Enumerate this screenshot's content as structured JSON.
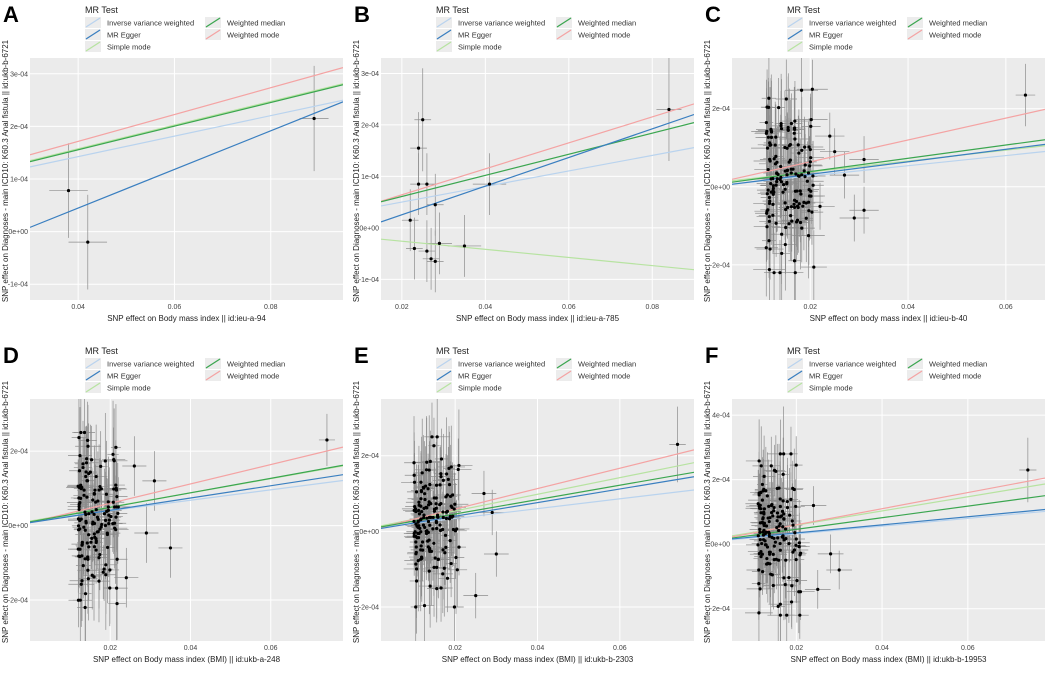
{
  "legend": {
    "title": "MR Test",
    "items": [
      {
        "key": "ivw",
        "label": "Inverse variance weighted",
        "color": "#b9d3ee"
      },
      {
        "key": "egger",
        "label": "MR Egger",
        "color": "#3a7fc0"
      },
      {
        "key": "simple",
        "label": "Simple mode",
        "color": "#b7e3a1"
      },
      {
        "key": "median",
        "label": "Weighted median",
        "color": "#3ba650"
      },
      {
        "key": "wmode",
        "label": "Weighted mode",
        "color": "#f4a3a3"
      }
    ]
  },
  "chart_data": [
    {
      "panel": "A",
      "type": "scatter",
      "xlabel": "SNP effect on Body mass index || id:ieu-a-94",
      "ylabel": "SNP effect on Diagnoses - main ICD10: K60.3 Anal fistula || id:ukb-b-6721",
      "xlim": [
        0.03,
        0.095
      ],
      "ylim": [
        -0.00013,
        0.00033
      ],
      "xticks": [
        0.04,
        0.06,
        0.08
      ],
      "xtick_labels": [
        "0.04",
        "0.06",
        "0.08"
      ],
      "yticks": [
        -0.0001,
        0,
        0.0001,
        0.0002,
        0.0003
      ],
      "ytick_labels": [
        "-1e-04",
        "0e+00",
        "1e-04",
        "2e-04",
        "3e-04"
      ],
      "points": [
        {
          "x": 0.038,
          "y": 7.8e-05,
          "xerr": 0.004,
          "yerr": 9e-05
        },
        {
          "x": 0.042,
          "y": -2e-05,
          "xerr": 0.004,
          "yerr": 9e-05
        },
        {
          "x": 0.089,
          "y": 0.000215,
          "xerr": 0.003,
          "yerr": 0.0001
        }
      ],
      "lines": {
        "ivw": [
          6.45e-05,
          0.00195
        ],
        "egger": [
          -0.000102,
          0.00367
        ],
        "simple": [
          6.75e-05,
          0.00225
        ],
        "median": [
          6.55e-05,
          0.00225
        ],
        "wmode": [
          6.95e-05,
          0.00255
        ]
      }
    },
    {
      "panel": "B",
      "type": "scatter",
      "xlabel": "SNP effect on Body mass index || id:ieu-a-785",
      "ylabel": "SNP effect on Diagnoses - main ICD10: K60.3 Anal fistula || id:ukb-b-6721",
      "xlim": [
        0.015,
        0.09
      ],
      "ylim": [
        -0.00014,
        0.00033
      ],
      "xticks": [
        0.02,
        0.04,
        0.06,
        0.08
      ],
      "xtick_labels": [
        "0.02",
        "0.04",
        "0.06",
        "0.08"
      ],
      "yticks": [
        -0.0001,
        0,
        0.0001,
        0.0002,
        0.0003
      ],
      "ytick_labels": [
        "-1e-04",
        "0e+00",
        "1e-04",
        "2e-04",
        "3e-04"
      ],
      "points": [
        {
          "x": 0.022,
          "y": 1.5e-05,
          "xerr": 0.002,
          "yerr": 6e-05
        },
        {
          "x": 0.023,
          "y": -4e-05,
          "xerr": 0.002,
          "yerr": 6e-05
        },
        {
          "x": 0.024,
          "y": 0.000155,
          "xerr": 0.002,
          "yerr": 7e-05
        },
        {
          "x": 0.025,
          "y": 0.00021,
          "xerr": 0.002,
          "yerr": 0.0001
        },
        {
          "x": 0.024,
          "y": 8.5e-05,
          "xerr": 0.002,
          "yerr": 6e-05
        },
        {
          "x": 0.026,
          "y": 8.5e-05,
          "xerr": 0.002,
          "yerr": 6e-05
        },
        {
          "x": 0.026,
          "y": -4.5e-05,
          "xerr": 0.002,
          "yerr": 6e-05
        },
        {
          "x": 0.027,
          "y": -6e-05,
          "xerr": 0.002,
          "yerr": 6e-05
        },
        {
          "x": 0.028,
          "y": 4.5e-05,
          "xerr": 0.002,
          "yerr": 6e-05
        },
        {
          "x": 0.028,
          "y": -6.5e-05,
          "xerr": 0.002,
          "yerr": 6e-05
        },
        {
          "x": 0.029,
          "y": -3e-05,
          "xerr": 0.003,
          "yerr": 6e-05
        },
        {
          "x": 0.035,
          "y": -3.5e-05,
          "xerr": 0.004,
          "yerr": 6e-05
        },
        {
          "x": 0.041,
          "y": 8.5e-05,
          "xerr": 0.004,
          "yerr": 6e-05
        },
        {
          "x": 0.084,
          "y": 0.00023,
          "xerr": 0.003,
          "yerr": 0.0001
        }
      ],
      "lines": {
        "ivw": [
          2e-05,
          0.00151
        ],
        "egger": [
          -3e-05,
          0.00278
        ],
        "simple": [
          -1e-05,
          -0.00079
        ],
        "median": [
          2e-05,
          0.00205
        ],
        "wmode": [
          1.4e-05,
          0.00252
        ]
      }
    },
    {
      "panel": "C",
      "type": "scatter",
      "xlabel": "SNP effect on body mass index || id:ieu-b-40",
      "ylabel": "SNP effect on Diagnoses - main ICD10: K60.3 Anal fistula || id:ukb-b-6721",
      "xlim": [
        0.004,
        0.068
      ],
      "ylim": [
        -0.00029,
        0.00033
      ],
      "xticks": [
        0.02,
        0.04,
        0.06
      ],
      "xtick_labels": [
        "0.02",
        "0.04",
        "0.06"
      ],
      "yticks": [
        -0.0002,
        0,
        0.0002
      ],
      "ytick_labels": [
        "-2e-04",
        "0e+00",
        "2e-04"
      ],
      "points": [
        {
          "x": 0.064,
          "y": 0.000235,
          "xerr": 0.002,
          "yerr": 8e-05
        },
        {
          "x": 0.031,
          "y": 7e-05,
          "xerr": 0.003,
          "yerr": 6e-05
        },
        {
          "x": 0.031,
          "y": -6e-05,
          "xerr": 0.003,
          "yerr": 6e-05
        },
        {
          "x": 0.029,
          "y": -8e-05,
          "xerr": 0.003,
          "yerr": 6e-05
        },
        {
          "x": 0.024,
          "y": 0.00013,
          "xerr": 0.003,
          "yerr": 6e-05
        },
        {
          "x": 0.025,
          "y": 9e-05,
          "xerr": 0.003,
          "yerr": 6e-05
        },
        {
          "x": 0.022,
          "y": -5e-05,
          "xerr": 0.003,
          "yerr": 6e-05
        },
        {
          "x": 0.027,
          "y": 3e-05,
          "xerr": 0.003,
          "yerr": 6e-05
        }
      ],
      "cloud": {
        "n": 160,
        "x_range": [
          0.011,
          0.021
        ],
        "y_range": [
          -0.00022,
          0.00025
        ],
        "seed": 17
      },
      "lines": {
        "ivw": [
          2e-06,
          0.0013
        ],
        "egger": [
          0.0,
          0.0016
        ],
        "simple": [
          1e-05,
          0.0014
        ],
        "median": [
          5e-06,
          0.0017
        ],
        "wmode": [
          8e-06,
          0.0028
        ]
      }
    },
    {
      "panel": "D",
      "type": "scatter",
      "xlabel": "SNP effect on Body mass index (BMI) || id:ukb-a-248",
      "ylabel": "SNP effect on Diagnoses - main ICD10: K60.3 Anal fistula || id:ukb-b-6721",
      "xlim": [
        0.0,
        0.078
      ],
      "ylim": [
        -0.00031,
        0.00034
      ],
      "xticks": [
        0.02,
        0.04,
        0.06
      ],
      "xtick_labels": [
        "0.02",
        "0.04",
        "0.06"
      ],
      "yticks": [
        -0.0002,
        0,
        0.0002
      ],
      "ytick_labels": [
        "-2e-04",
        "0e+00",
        "2e-04"
      ],
      "points": [
        {
          "x": 0.074,
          "y": 0.00023,
          "xerr": 0.002,
          "yerr": 7e-05
        },
        {
          "x": 0.031,
          "y": 0.00012,
          "xerr": 0.003,
          "yerr": 8e-05
        },
        {
          "x": 0.035,
          "y": -6e-05,
          "xerr": 0.003,
          "yerr": 8e-05
        },
        {
          "x": 0.029,
          "y": -2e-05,
          "xerr": 0.003,
          "yerr": 8e-05
        },
        {
          "x": 0.026,
          "y": 0.00016,
          "xerr": 0.003,
          "yerr": 8e-05
        },
        {
          "x": 0.024,
          "y": -0.00014,
          "xerr": 0.003,
          "yerr": 8e-05
        },
        {
          "x": 0.022,
          "y": 5e-05,
          "xerr": 0.003,
          "yerr": 8e-05
        }
      ],
      "cloud": {
        "n": 150,
        "x_range": [
          0.012,
          0.022
        ],
        "y_range": [
          -0.00022,
          0.00025
        ],
        "seed": 29
      },
      "lines": {
        "ivw": [
          1.2e-05,
          0.0014
        ],
        "egger": [
          8e-06,
          0.00165
        ],
        "simple": [
          1.2e-05,
          0.0019
        ],
        "median": [
          1e-05,
          0.00195
        ],
        "wmode": [
          8e-06,
          0.0026
        ]
      }
    },
    {
      "panel": "E",
      "type": "scatter",
      "xlabel": "SNP effect on Body mass index (BMI) || id:ukb-b-2303",
      "ylabel": "SNP effect on Diagnoses - main ICD10: K60.3 Anal fistula || id:ukb-b-6721",
      "xlim": [
        0.002,
        0.078
      ],
      "ylim": [
        -0.00029,
        0.00035
      ],
      "xticks": [
        0.02,
        0.04,
        0.06
      ],
      "xtick_labels": [
        "0.02",
        "0.04",
        "0.06"
      ],
      "yticks": [
        -0.0002,
        0,
        0.0002
      ],
      "ytick_labels": [
        "-2e-04",
        "0e+00",
        "2e-04"
      ],
      "points": [
        {
          "x": 0.074,
          "y": 0.00023,
          "xerr": 0.002,
          "yerr": 0.0001
        },
        {
          "x": 0.029,
          "y": 5e-05,
          "xerr": 0.003,
          "yerr": 6e-05
        },
        {
          "x": 0.03,
          "y": -6e-05,
          "xerr": 0.003,
          "yerr": 6e-05
        },
        {
          "x": 0.025,
          "y": -0.00017,
          "xerr": 0.003,
          "yerr": 6e-05
        },
        {
          "x": 0.027,
          "y": 0.0001,
          "xerr": 0.003,
          "yerr": 6e-05
        }
      ],
      "cloud": {
        "n": 170,
        "x_range": [
          0.01,
          0.021
        ],
        "y_range": [
          -0.0002,
          0.00025
        ],
        "seed": 41
      },
      "lines": {
        "ivw": [
          8e-06,
          0.0013
        ],
        "egger": [
          4e-06,
          0.0018
        ],
        "simple": [
          1e-05,
          0.0022
        ],
        "median": [
          8e-06,
          0.0019
        ],
        "wmode": [
          5e-06,
          0.0027
        ]
      }
    },
    {
      "panel": "F",
      "type": "scatter",
      "xlabel": "SNP effect on Body mass index (BMI) || id:ukb-b-19953",
      "ylabel": "SNP effect on Diagnoses - main ICD10: K60.3 Anal fistula || id:ukb-b-6721",
      "xlim": [
        0.005,
        0.078
      ],
      "ylim": [
        -0.0003,
        0.00045
      ],
      "xticks": [
        0.02,
        0.04,
        0.06
      ],
      "xtick_labels": [
        "0.02",
        "0.04",
        "0.06"
      ],
      "yticks": [
        -0.0002,
        0,
        0.0002,
        0.0004
      ],
      "ytick_labels": [
        "-2e-04",
        "0e+00",
        "2e-04",
        "4e-04"
      ],
      "points": [
        {
          "x": 0.074,
          "y": 0.00023,
          "xerr": 0.002,
          "yerr": 0.0001
        },
        {
          "x": 0.03,
          "y": -8e-05,
          "xerr": 0.003,
          "yerr": 6e-05
        },
        {
          "x": 0.028,
          "y": -3e-05,
          "xerr": 0.003,
          "yerr": 6e-05
        },
        {
          "x": 0.025,
          "y": -0.00014,
          "xerr": 0.003,
          "yerr": 6e-05
        },
        {
          "x": 0.024,
          "y": 0.00012,
          "xerr": 0.003,
          "yerr": 6e-05
        }
      ],
      "cloud": {
        "n": 160,
        "x_range": [
          0.011,
          0.021
        ],
        "y_range": [
          -0.00022,
          0.00028
        ],
        "seed": 53
      },
      "lines": {
        "ivw": [
          8e-06,
          0.0012
        ],
        "egger": [
          1e-05,
          0.00125
        ],
        "simple": [
          1.5e-05,
          0.0022
        ],
        "median": [
          1e-05,
          0.0018
        ],
        "wmode": [
          1e-05,
          0.0025
        ]
      }
    }
  ]
}
